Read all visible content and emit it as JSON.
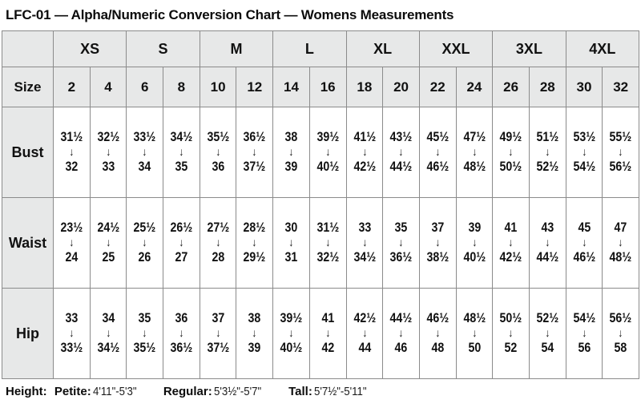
{
  "title": "LFC-01 — Alpha/Numeric Conversion Chart — Womens Measurements",
  "icons": {
    "range_arrow": "↓"
  },
  "colors": {
    "header_bg": "#e7e8e8",
    "border_inner": "#8b8b8b",
    "border_outer": "#6f6f6f",
    "text": "#111111",
    "cell_bg": "#ffffff"
  },
  "chart_data": {
    "type": "table",
    "title": "LFC-01 — Alpha/Numeric Conversion Chart — Womens Measurements",
    "alpha_sizes": [
      "XS",
      "S",
      "M",
      "L",
      "XL",
      "XXL",
      "3XL",
      "4XL"
    ],
    "size_row_label": "Size",
    "numeric_sizes": [
      "2",
      "4",
      "6",
      "8",
      "10",
      "12",
      "14",
      "16",
      "18",
      "20",
      "22",
      "24",
      "26",
      "28",
      "30",
      "32"
    ],
    "measurements": [
      {
        "label": "Bust",
        "cells": [
          {
            "from": "31½",
            "to": "32"
          },
          {
            "from": "32½",
            "to": "33"
          },
          {
            "from": "33½",
            "to": "34"
          },
          {
            "from": "34½",
            "to": "35"
          },
          {
            "from": "35½",
            "to": "36"
          },
          {
            "from": "36½",
            "to": "37½"
          },
          {
            "from": "38",
            "to": "39"
          },
          {
            "from": "39½",
            "to": "40½"
          },
          {
            "from": "41½",
            "to": "42½"
          },
          {
            "from": "43½",
            "to": "44½"
          },
          {
            "from": "45½",
            "to": "46½"
          },
          {
            "from": "47½",
            "to": "48½"
          },
          {
            "from": "49½",
            "to": "50½"
          },
          {
            "from": "51½",
            "to": "52½"
          },
          {
            "from": "53½",
            "to": "54½"
          },
          {
            "from": "55½",
            "to": "56½"
          }
        ]
      },
      {
        "label": "Waist",
        "cells": [
          {
            "from": "23½",
            "to": "24"
          },
          {
            "from": "24½",
            "to": "25"
          },
          {
            "from": "25½",
            "to": "26"
          },
          {
            "from": "26½",
            "to": "27"
          },
          {
            "from": "27½",
            "to": "28"
          },
          {
            "from": "28½",
            "to": "29½"
          },
          {
            "from": "30",
            "to": "31"
          },
          {
            "from": "31½",
            "to": "32½"
          },
          {
            "from": "33",
            "to": "34½"
          },
          {
            "from": "35",
            "to": "36½"
          },
          {
            "from": "37",
            "to": "38½"
          },
          {
            "from": "39",
            "to": "40½"
          },
          {
            "from": "41",
            "to": "42½"
          },
          {
            "from": "43",
            "to": "44½"
          },
          {
            "from": "45",
            "to": "46½"
          },
          {
            "from": "47",
            "to": "48½"
          }
        ]
      },
      {
        "label": "Hip",
        "cells": [
          {
            "from": "33",
            "to": "33½"
          },
          {
            "from": "34",
            "to": "34½"
          },
          {
            "from": "35",
            "to": "35½"
          },
          {
            "from": "36",
            "to": "36½"
          },
          {
            "from": "37",
            "to": "37½"
          },
          {
            "from": "38",
            "to": "39"
          },
          {
            "from": "39½",
            "to": "40½"
          },
          {
            "from": "41",
            "to": "42"
          },
          {
            "from": "42½",
            "to": "44"
          },
          {
            "from": "44½",
            "to": "46"
          },
          {
            "from": "46½",
            "to": "48"
          },
          {
            "from": "48½",
            "to": "50"
          },
          {
            "from": "50½",
            "to": "52"
          },
          {
            "from": "52½",
            "to": "54"
          },
          {
            "from": "54½",
            "to": "56"
          },
          {
            "from": "56½",
            "to": "58"
          }
        ]
      }
    ]
  },
  "footer": {
    "height_label": "Height:",
    "petite_label": "Petite:",
    "petite_value": "4'11\"-5'3\"",
    "regular_label": "Regular:",
    "regular_value": "5'3½\"-5'7\"",
    "tall_label": "Tall:",
    "tall_value": "5'7½\"-5'11\""
  }
}
